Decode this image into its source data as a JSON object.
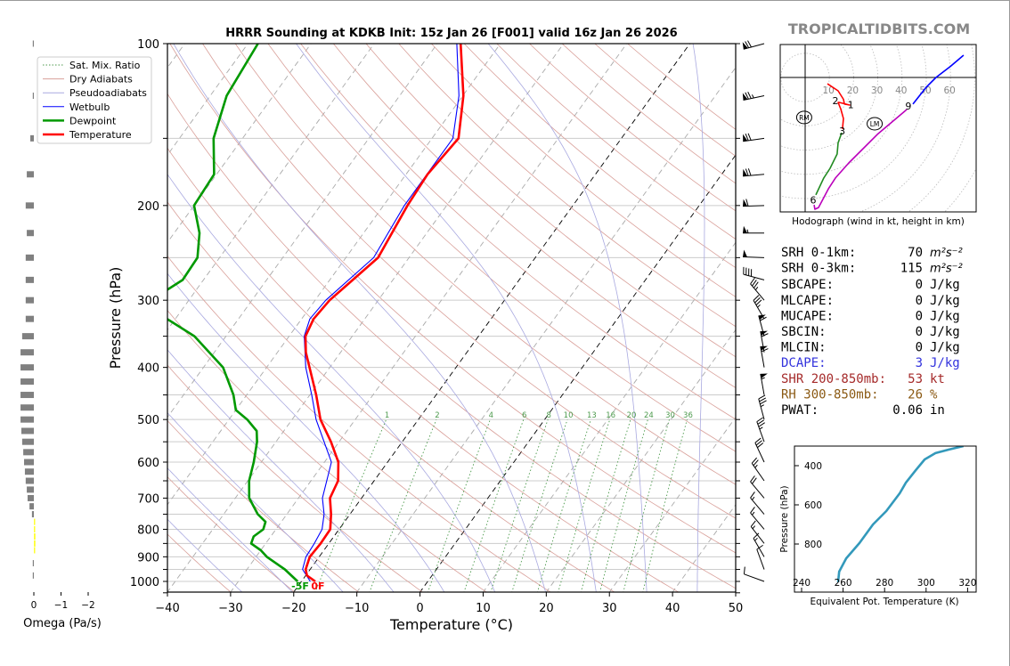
{
  "brand": "TROPICALTIDBITS.COM",
  "title": "HRRR Sounding at KDKB Init: 15z Jan 26 [F001] valid 16z Jan 26 2026",
  "surface_labels": {
    "dewpoint": "-5F",
    "temperature": "0F"
  },
  "legend": [
    {
      "label": "Sat. Mix. Ratio",
      "color": "#4c9a4c"
    },
    {
      "label": "Dry Adiabats",
      "color": "#d9a09a"
    },
    {
      "label": "Pseudoadiabats",
      "color": "#a9a9e0"
    },
    {
      "label": "Wetbulb",
      "color": "#0000ff"
    },
    {
      "label": "Dewpoint",
      "color": "#009900"
    },
    {
      "label": "Temperature",
      "color": "#ff0000"
    }
  ],
  "stats": [
    {
      "label": "SRH 0-1km:",
      "value": "70",
      "unit": "m²s⁻²",
      "color": "#000000"
    },
    {
      "label": "SRH 0-3km:",
      "value": "115",
      "unit": "m²s⁻²",
      "color": "#000000"
    },
    {
      "label": "SBCAPE:",
      "value": "0",
      "unit": "J/kg",
      "color": "#000000"
    },
    {
      "label": "MLCAPE:",
      "value": "0",
      "unit": "J/kg",
      "color": "#000000"
    },
    {
      "label": "MUCAPE:",
      "value": "0",
      "unit": "J/kg",
      "color": "#000000"
    },
    {
      "label": "SBCIN:",
      "value": "0",
      "unit": "J/kg",
      "color": "#000000"
    },
    {
      "label": "MLCIN:",
      "value": "0",
      "unit": "J/kg",
      "color": "#000000"
    },
    {
      "label": "DCAPE:",
      "value": "3",
      "unit": "J/kg",
      "color": "#3333dd"
    },
    {
      "label": "SHR 200-850mb:",
      "value": "53",
      "unit": "kt",
      "color": "#a52a2a"
    },
    {
      "label": "RH 300-850mb:",
      "value": "26",
      "unit": "%",
      "color": "#8b5a14"
    },
    {
      "label": "PWAT:",
      "value": "0.06",
      "unit": "in",
      "color": "#000000"
    }
  ],
  "chart_data": [
    {
      "type": "line",
      "name": "skewt",
      "xlabel": "Temperature (°C)",
      "ylabel": "Pressure (hPa)",
      "xlim": [
        -40,
        50
      ],
      "ylim": [
        1050,
        100
      ],
      "xticks": [
        -40,
        -30,
        -20,
        -10,
        0,
        10,
        20,
        30,
        40,
        50
      ],
      "xtick_labels": [
        "−40",
        "−30",
        "−20",
        "−10",
        "0",
        "10",
        "20",
        "30",
        "40",
        "50"
      ],
      "yticks": [
        100,
        200,
        300,
        400,
        500,
        600,
        700,
        800,
        900,
        1000
      ],
      "mixing_ratio_labels": [
        "1",
        "2",
        "4",
        "6",
        "8",
        "10",
        "13",
        "16",
        "20",
        "24",
        "30",
        "36"
      ],
      "series": [
        {
          "name": "Temperature",
          "color": "#ff0000",
          "p": [
            1000,
            975,
            950,
            900,
            850,
            800,
            750,
            700,
            650,
            600,
            550,
            500,
            450,
            400,
            375,
            350,
            325,
            300,
            250,
            200,
            175,
            150,
            125,
            100
          ],
          "t": [
            -17.8,
            -19.8,
            -20.7,
            -21.5,
            -21.3,
            -21.4,
            -23.0,
            -25.0,
            -25.7,
            -27.8,
            -31.3,
            -35.5,
            -39.0,
            -43.2,
            -45.5,
            -47.4,
            -48.1,
            -47.7,
            -44.9,
            -46.2,
            -46.6,
            -45.8,
            -49.9,
            -56.3
          ]
        },
        {
          "name": "Wetbulb",
          "color": "#0000ff",
          "p": [
            1000,
            950,
            900,
            850,
            800,
            750,
            700,
            600,
            500,
            450,
            400,
            350,
            325,
            300,
            250,
            200,
            150,
            125,
            100
          ],
          "t": [
            -18.6,
            -21.2,
            -22.1,
            -22.3,
            -22.7,
            -24.1,
            -26.2,
            -28.9,
            -36.2,
            -39.7,
            -43.8,
            -47.6,
            -48.7,
            -48.3,
            -45.6,
            -46.7,
            -46.7,
            -50.6,
            -56.9
          ]
        },
        {
          "name": "Dewpoint",
          "color": "#009900",
          "p": [
            1000,
            950,
            900,
            875,
            850,
            825,
            800,
            775,
            750,
            700,
            650,
            600,
            550,
            525,
            500,
            480,
            450,
            400,
            350,
            325,
            300,
            275,
            250,
            225,
            200,
            175,
            150,
            125,
            100
          ],
          "t": [
            -20.6,
            -24.0,
            -28.3,
            -30.0,
            -32.3,
            -32.7,
            -32.0,
            -32.5,
            -34.6,
            -37.8,
            -39.8,
            -41.2,
            -43.0,
            -44.3,
            -47.1,
            -50.0,
            -52.1,
            -56.9,
            -65.0,
            -71.3,
            -76.0,
            -73.3,
            -73.5,
            -76.0,
            -80.0,
            -80.4,
            -84.6,
            -87.4,
            -88.4
          ]
        }
      ],
      "winds": [
        {
          "p": 100,
          "dir": 255,
          "kt": 70
        },
        {
          "p": 125,
          "dir": 258,
          "kt": 75
        },
        {
          "p": 150,
          "dir": 262,
          "kt": 70
        },
        {
          "p": 175,
          "dir": 265,
          "kt": 70
        },
        {
          "p": 200,
          "dir": 268,
          "kt": 60
        },
        {
          "p": 225,
          "dir": 270,
          "kt": 55
        },
        {
          "p": 250,
          "dir": 272,
          "kt": 50
        },
        {
          "p": 275,
          "dir": 285,
          "kt": 40
        },
        {
          "p": 300,
          "dir": 320,
          "kt": 35
        },
        {
          "p": 325,
          "dir": 330,
          "kt": 35
        },
        {
          "p": 350,
          "dir": 345,
          "kt": 60
        },
        {
          "p": 375,
          "dir": 350,
          "kt": 60
        },
        {
          "p": 400,
          "dir": 350,
          "kt": 60
        },
        {
          "p": 450,
          "dir": 350,
          "kt": 55
        },
        {
          "p": 500,
          "dir": 345,
          "kt": 35
        },
        {
          "p": 550,
          "dir": 340,
          "kt": 35
        },
        {
          "p": 600,
          "dir": 335,
          "kt": 30
        },
        {
          "p": 650,
          "dir": 325,
          "kt": 25
        },
        {
          "p": 700,
          "dir": 320,
          "kt": 20
        },
        {
          "p": 750,
          "dir": 320,
          "kt": 15
        },
        {
          "p": 800,
          "dir": 320,
          "kt": 15
        },
        {
          "p": 850,
          "dir": 322,
          "kt": 15
        },
        {
          "p": 900,
          "dir": 330,
          "kt": 15
        },
        {
          "p": 950,
          "dir": 340,
          "kt": 10
        },
        {
          "p": 1000,
          "dir": 290,
          "kt": 10
        }
      ]
    },
    {
      "type": "bar",
      "name": "omega",
      "xlabel": "Omega (Pa/s)",
      "xticks": [
        0,
        -1,
        -2
      ],
      "xtick_labels": [
        "0",
        "−1",
        "−2"
      ],
      "p": [
        100,
        125,
        150,
        175,
        200,
        225,
        250,
        275,
        300,
        325,
        350,
        375,
        400,
        425,
        450,
        475,
        500,
        525,
        550,
        575,
        600,
        625,
        650,
        675,
        700,
        725,
        750,
        775,
        800,
        825,
        850,
        875,
        925,
        975
      ],
      "values": [
        0.02,
        0.02,
        0.13,
        0.26,
        0.3,
        0.26,
        0.3,
        0.3,
        0.3,
        0.3,
        0.43,
        0.49,
        0.49,
        0.49,
        0.49,
        0.49,
        0.49,
        0.46,
        0.43,
        0.39,
        0.36,
        0.33,
        0.3,
        0.26,
        0.23,
        0.16,
        0.07,
        -0.05,
        -0.05,
        -0.06,
        -0.06,
        -0.05,
        0.02,
        0.02
      ],
      "colors": {
        "positive": "#808080",
        "negative": "#ffff33"
      }
    },
    {
      "type": "line",
      "name": "hodograph",
      "caption": "Hodograph (wind in kt, height in km)",
      "ring_labels": [
        "10",
        "20",
        "30",
        "40",
        "50",
        "60"
      ],
      "segments": [
        {
          "km": "0-3",
          "color": "#ff0000",
          "points": [
            [
              9.2,
              -2.6
            ],
            [
              13.6,
              -5.5
            ],
            [
              15.8,
              -9
            ],
            [
              16.2,
              -11
            ],
            [
              18.4,
              -11.4
            ],
            [
              14,
              -10.3
            ],
            [
              13.6,
              -10.3
            ],
            [
              14.7,
              -13
            ],
            [
              15.8,
              -17
            ],
            [
              15.4,
              -21.3
            ]
          ]
        },
        {
          "km": "3-6",
          "color": "#228b22",
          "points": [
            [
              15.1,
              -22.8
            ],
            [
              13.6,
              -27
            ],
            [
              13.2,
              -31.6
            ],
            [
              10.3,
              -37.5
            ],
            [
              7.7,
              -41.5
            ],
            [
              4.4,
              -48.5
            ]
          ]
        },
        {
          "km": "6-9",
          "color": "#bb00bb",
          "points": [
            [
              3.7,
              -52.6
            ],
            [
              4.0,
              -54.4
            ],
            [
              5.5,
              -53.7
            ],
            [
              9.6,
              -46
            ],
            [
              12.5,
              -41.5
            ],
            [
              18,
              -35.3
            ],
            [
              29.8,
              -23.5
            ],
            [
              42,
              -13.2
            ]
          ]
        },
        {
          "km": "9+",
          "color": "#0000ff",
          "points": [
            [
              44.5,
              -11
            ],
            [
              50,
              -4
            ],
            [
              54,
              0
            ],
            [
              60,
              4.6
            ],
            [
              65.4,
              9.2
            ]
          ]
        }
      ],
      "height_labels": [
        {
          "text": "1",
          "u": 18.8,
          "v": -11.2
        },
        {
          "text": "2",
          "u": 12.5,
          "v": -9.6
        },
        {
          "text": "3",
          "u": 15.3,
          "v": -22.0
        },
        {
          "text": "6",
          "u": 3.3,
          "v": -50.5
        },
        {
          "text": "9",
          "u": 42.6,
          "v": -11.8
        }
      ],
      "storm_motion": [
        {
          "text": "RM",
          "u": -0.4,
          "v": -16.5
        },
        {
          "text": "LM",
          "u": 28.7,
          "v": -19.1
        }
      ]
    },
    {
      "type": "line",
      "name": "theta-e",
      "xlabel": "Equivalent Pot. Temperature (K)",
      "ylabel": "Pressure (hPa)",
      "xticks": [
        240,
        260,
        280,
        300,
        320
      ],
      "yticks": [
        400,
        600,
        800
      ],
      "color": "#3399bb",
      "theta_e": [
        257.6,
        258.1,
        261.5,
        267.9,
        274.4,
        280.8,
        287.3,
        290.3,
        295.0,
        299.3,
        304.5,
        310.8,
        318.0
      ],
      "p": [
        995,
        941,
        873,
        795,
        700,
        632,
        541,
        486,
        423,
        368,
        336,
        318,
        300
      ]
    }
  ]
}
